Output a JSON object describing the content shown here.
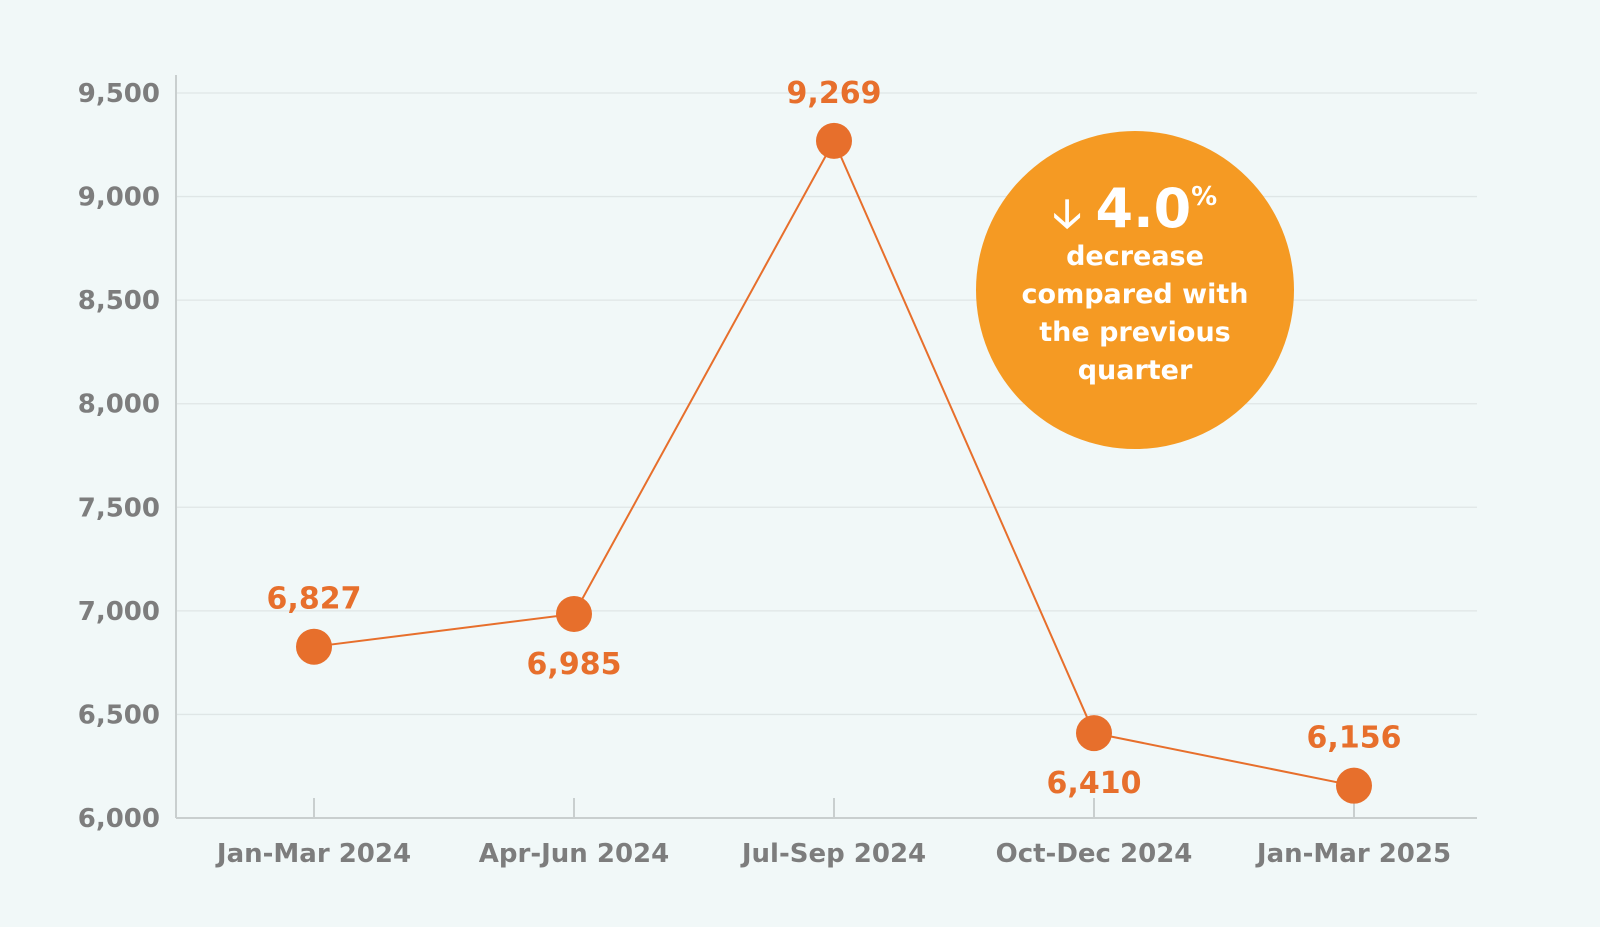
{
  "chart_data": {
    "type": "line",
    "title": "",
    "xlabel": "",
    "ylabel": "",
    "categories": [
      "Jan-Mar 2024",
      "Apr-Jun 2024",
      "Jul-Sep 2024",
      "Oct-Dec 2024",
      "Jan-Mar 2025"
    ],
    "values": [
      6827,
      6985,
      9269,
      6410,
      6156
    ],
    "data_labels": [
      "6,827",
      "6,985",
      "9,269",
      "6,410",
      "6,156"
    ],
    "ylim": [
      6000,
      9500
    ],
    "yticks": [
      6000,
      6500,
      7000,
      7500,
      8000,
      8500,
      9000,
      9500
    ],
    "ytick_labels": [
      "6,000",
      "6,500",
      "7,000",
      "7,500",
      "8,000",
      "8,500",
      "9,000",
      "9,500"
    ],
    "grid": true,
    "colors": {
      "line": "#e76f2c",
      "marker": "#e76f2c",
      "grid": "#dfe6e6",
      "axis": "#c9cfcf",
      "tick_text": "#7d7d7d"
    },
    "annotation": {
      "arrow_icon": "down-arrow-icon",
      "arrow": "🡣",
      "value": "4.0",
      "unit": "%",
      "text": "decrease compared with the previous quarter",
      "color": "#f59a23"
    }
  }
}
